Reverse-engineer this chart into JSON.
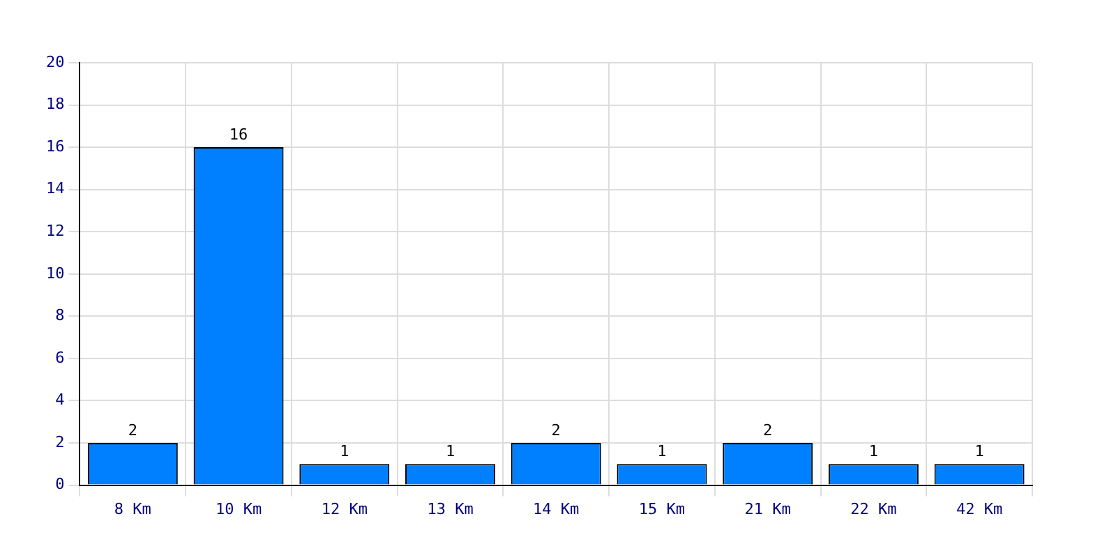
{
  "chart_data": {
    "type": "bar",
    "categories": [
      "8 Km",
      "10 Km",
      "12 Km",
      "13 Km",
      "14 Km",
      "15 Km",
      "21 Km",
      "22 Km",
      "42 Km"
    ],
    "values": [
      2,
      16,
      1,
      1,
      2,
      1,
      2,
      1,
      1
    ],
    "color": "#0080ff",
    "ylim": [
      0,
      20
    ],
    "yticks": [
      0,
      2,
      4,
      6,
      8,
      10,
      12,
      14,
      16,
      18,
      20
    ],
    "grid": true,
    "data_labels": true
  }
}
